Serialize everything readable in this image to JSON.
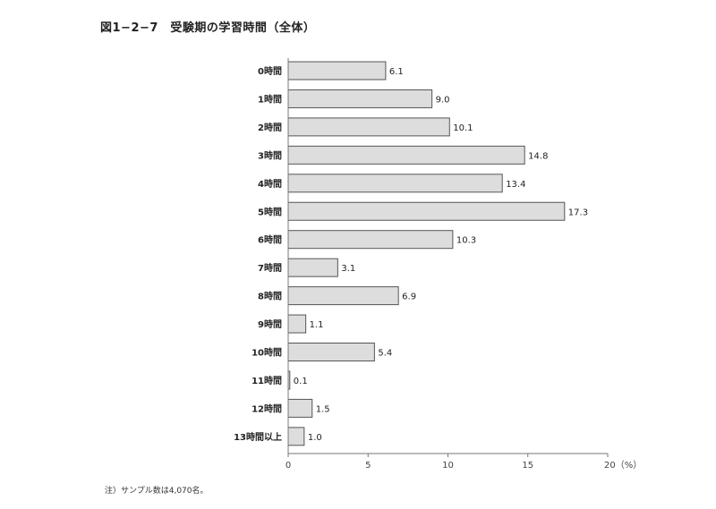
{
  "title": "図1−2−7　受験期の学習時間（全体）",
  "note": "注）サンプル数は4,070名。",
  "chart_data": {
    "type": "bar",
    "orientation": "horizontal",
    "categories": [
      "0時間",
      "1時間",
      "2時間",
      "3時間",
      "4時間",
      "5時間",
      "6時間",
      "7時間",
      "8時間",
      "9時間",
      "10時間",
      "11時間",
      "12時間",
      "13時間以上"
    ],
    "values": [
      6.1,
      9.0,
      10.1,
      14.8,
      13.4,
      17.3,
      10.3,
      3.1,
      6.9,
      1.1,
      5.4,
      0.1,
      1.5,
      1.0
    ],
    "value_labels": [
      "6.1",
      "9.0",
      "10.1",
      "14.8",
      "13.4",
      "17.3",
      "10.3",
      "3.1",
      "6.9",
      "1.1",
      "5.4",
      "0.1",
      "1.5",
      "1.0"
    ],
    "xlim": [
      0,
      20
    ],
    "xticks": [
      0,
      5,
      10,
      15,
      20
    ],
    "xtick_labels": [
      "0",
      "5",
      "10",
      "15",
      "20（%）"
    ],
    "grid": false,
    "bar_color": "#dddddd",
    "bar_stroke": "#555555"
  }
}
